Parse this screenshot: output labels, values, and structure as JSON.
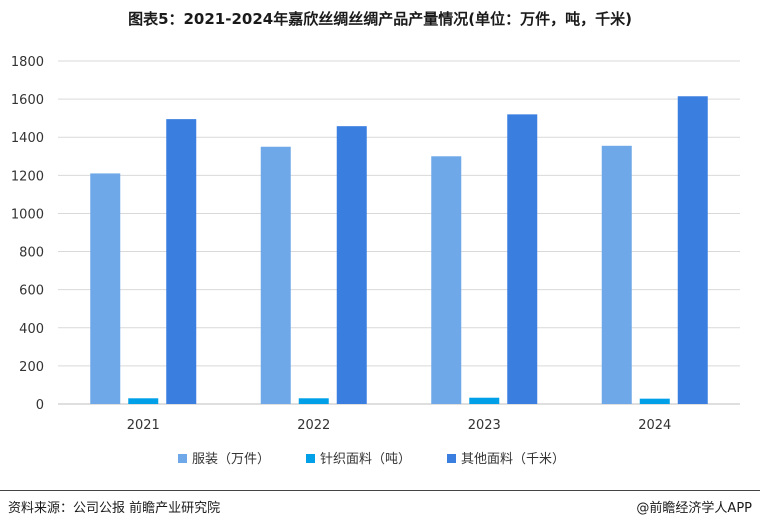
{
  "title": "图表5：2021-2024年嘉欣丝绸丝绸产品产量情况(单位：万件，吨，千米)",
  "source": "资料来源：公司公报 前瞻产业研究院",
  "copyright": "@前瞻经济学人APP",
  "colors": {
    "series": [
      "#6fa8e8",
      "#00a0e9",
      "#3a7fe0"
    ],
    "grid": "#d9d9d9",
    "axis": "#bfbfbf"
  },
  "chart_data": {
    "type": "bar",
    "categories": [
      "2021",
      "2022",
      "2023",
      "2024"
    ],
    "series": [
      {
        "name": "服装（万件）",
        "values": [
          1210,
          1350,
          1300,
          1355
        ]
      },
      {
        "name": "针织面料（吨）",
        "values": [
          30,
          30,
          33,
          28
        ]
      },
      {
        "name": "其他面料（千米）",
        "values": [
          1495,
          1458,
          1520,
          1615
        ]
      }
    ],
    "ylim": [
      0,
      1800
    ],
    "yticks": [
      0,
      200,
      400,
      600,
      800,
      1000,
      1200,
      1400,
      1600,
      1800
    ],
    "grid": true,
    "legend": "bottom"
  }
}
